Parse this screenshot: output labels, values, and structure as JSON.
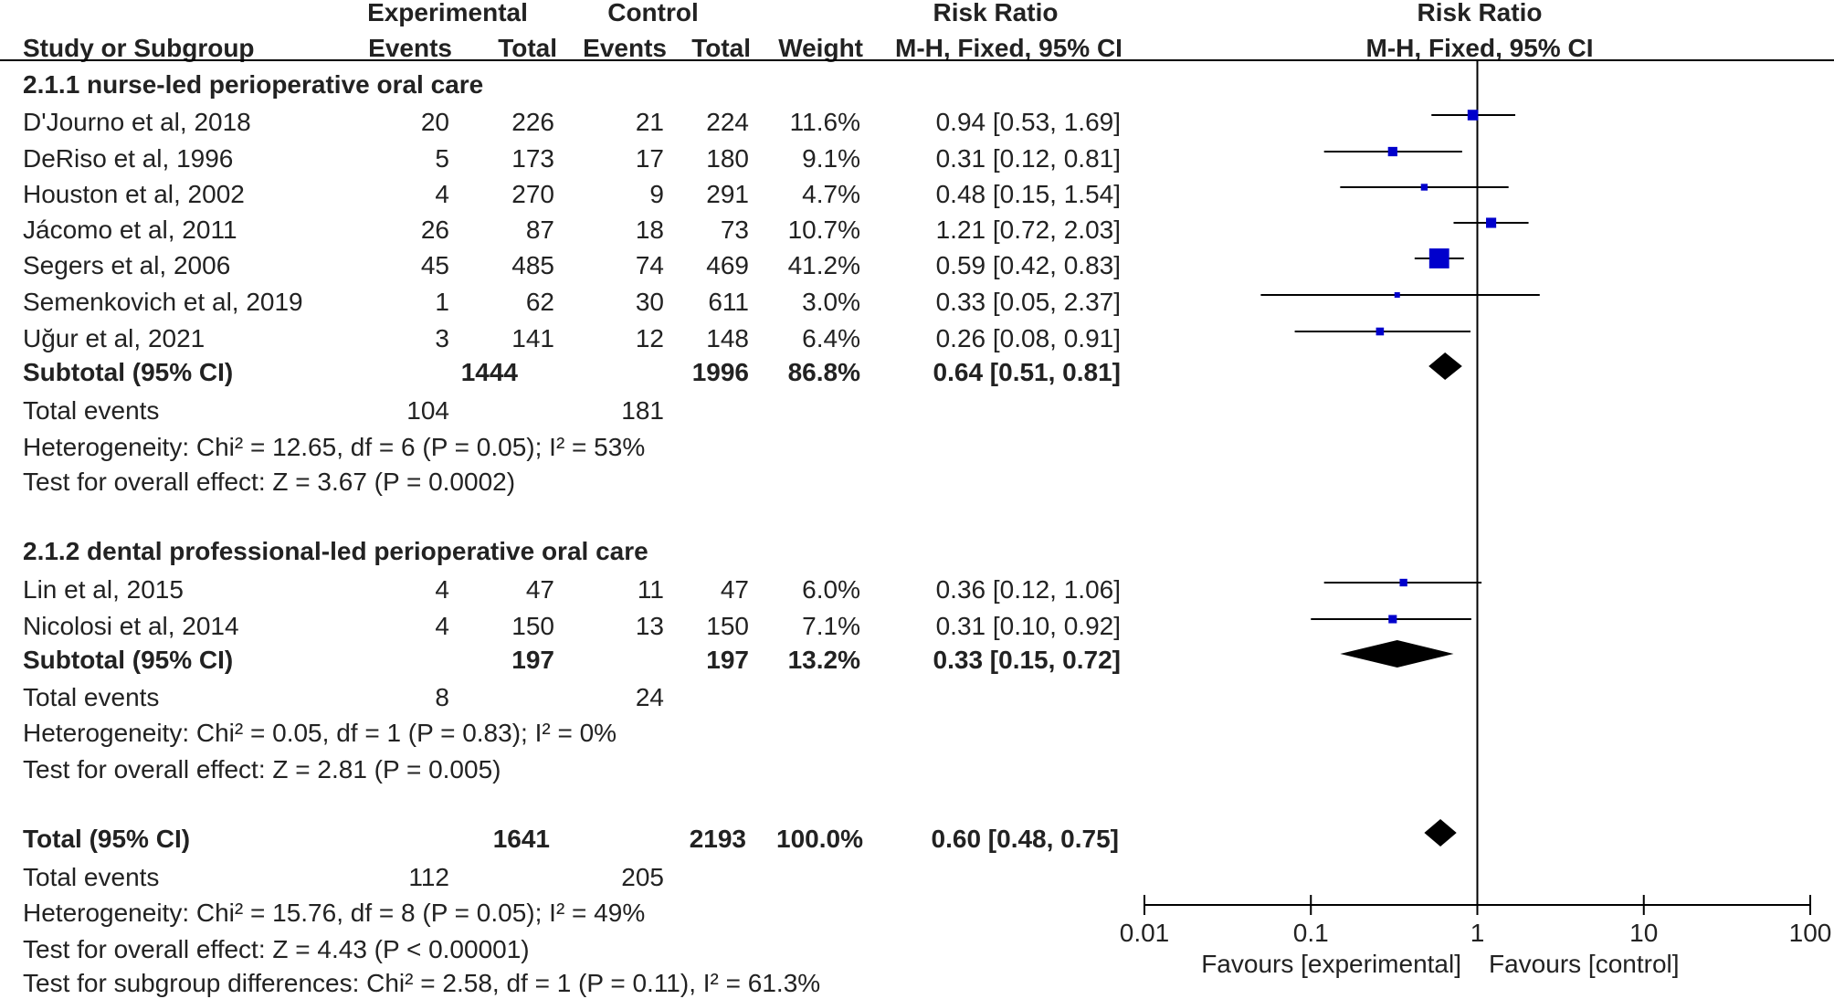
{
  "header": {
    "experimental": "Experimental",
    "control": "Control",
    "rr_left": "Risk Ratio",
    "rr_right": "Risk Ratio",
    "study": "Study or Subgroup",
    "exp_events": "Events",
    "exp_total": "Total",
    "ctl_events": "Events",
    "ctl_total": "Total",
    "weight": "Weight",
    "method_left": "M-H, Fixed, 95% CI",
    "method_right": "M-H, Fixed, 95% CI"
  },
  "chart_data": {
    "type": "forest",
    "x_scale": "log",
    "xlim": [
      0.01,
      100
    ],
    "ticks": [
      "0.01",
      "0.1",
      "1",
      "10",
      "100"
    ],
    "tick_values": [
      0.01,
      0.1,
      1,
      10,
      100
    ],
    "favours_left": "Favours [experimental]",
    "favours_right": "Favours [control]",
    "subgroups": [
      {
        "title": "2.1.1 nurse-led perioperative oral care",
        "studies": [
          {
            "name": "D'Journo et al, 2018",
            "exp_events": "20",
            "exp_total": "226",
            "ctl_events": "21",
            "ctl_total": "224",
            "weight": "11.6%",
            "ci_text": "0.94 [0.53, 1.69]",
            "rr": 0.94,
            "lo": 0.53,
            "hi": 1.69,
            "w": 11.6
          },
          {
            "name": "DeRiso et al, 1996",
            "exp_events": "5",
            "exp_total": "173",
            "ctl_events": "17",
            "ctl_total": "180",
            "weight": "9.1%",
            "ci_text": "0.31 [0.12, 0.81]",
            "rr": 0.31,
            "lo": 0.12,
            "hi": 0.81,
            "w": 9.1
          },
          {
            "name": "Houston et al, 2002",
            "exp_events": "4",
            "exp_total": "270",
            "ctl_events": "9",
            "ctl_total": "291",
            "weight": "4.7%",
            "ci_text": "0.48 [0.15, 1.54]",
            "rr": 0.48,
            "lo": 0.15,
            "hi": 1.54,
            "w": 4.7
          },
          {
            "name": "Jácomo et al, 2011",
            "exp_events": "26",
            "exp_total": "87",
            "ctl_events": "18",
            "ctl_total": "73",
            "weight": "10.7%",
            "ci_text": "1.21 [0.72, 2.03]",
            "rr": 1.21,
            "lo": 0.72,
            "hi": 2.03,
            "w": 10.7
          },
          {
            "name": "Segers et al, 2006",
            "exp_events": "45",
            "exp_total": "485",
            "ctl_events": "74",
            "ctl_total": "469",
            "weight": "41.2%",
            "ci_text": "0.59 [0.42, 0.83]",
            "rr": 0.59,
            "lo": 0.42,
            "hi": 0.83,
            "w": 41.2
          },
          {
            "name": "Semenkovich et al, 2019",
            "exp_events": "1",
            "exp_total": "62",
            "ctl_events": "30",
            "ctl_total": "611",
            "weight": "3.0%",
            "ci_text": "0.33 [0.05, 2.37]",
            "rr": 0.33,
            "lo": 0.05,
            "hi": 2.37,
            "w": 3.0
          },
          {
            "name": "Uğur et al, 2021",
            "exp_events": "3",
            "exp_total": "141",
            "ctl_events": "12",
            "ctl_total": "148",
            "weight": "6.4%",
            "ci_text": "0.26 [0.08, 0.91]",
            "rr": 0.26,
            "lo": 0.08,
            "hi": 0.91,
            "w": 6.4
          }
        ],
        "subtotal": {
          "label": "Subtotal (95% CI)",
          "exp_total": "1444",
          "ctl_total": "1996",
          "weight": "86.8%",
          "ci_text": "0.64 [0.51, 0.81]",
          "rr": 0.64,
          "lo": 0.51,
          "hi": 0.81
        },
        "total_events": {
          "label": "Total events",
          "exp": "104",
          "ctl": "181"
        },
        "heterogeneity": "Heterogeneity: Chi² = 12.65, df = 6 (P = 0.05); I² = 53%",
        "overall": "Test for overall effect: Z = 3.67 (P = 0.0002)"
      },
      {
        "title": "2.1.2 dental professional-led perioperative oral care",
        "studies": [
          {
            "name": "Lin et al, 2015",
            "exp_events": "4",
            "exp_total": "47",
            "ctl_events": "11",
            "ctl_total": "47",
            "weight": "6.0%",
            "ci_text": "0.36 [0.12, 1.06]",
            "rr": 0.36,
            "lo": 0.12,
            "hi": 1.06,
            "w": 6.0
          },
          {
            "name": "Nicolosi et al, 2014",
            "exp_events": "4",
            "exp_total": "150",
            "ctl_events": "13",
            "ctl_total": "150",
            "weight": "7.1%",
            "ci_text": "0.31 [0.10, 0.92]",
            "rr": 0.31,
            "lo": 0.1,
            "hi": 0.92,
            "w": 7.1
          }
        ],
        "subtotal": {
          "label": "Subtotal (95% CI)",
          "exp_total": "197",
          "ctl_total": "197",
          "weight": "13.2%",
          "ci_text": "0.33 [0.15, 0.72]",
          "rr": 0.33,
          "lo": 0.15,
          "hi": 0.72
        },
        "total_events": {
          "label": "Total events",
          "exp": "8",
          "ctl": "24"
        },
        "heterogeneity": "Heterogeneity: Chi² = 0.05, df = 1 (P = 0.83); I² = 0%",
        "overall": "Test for overall effect: Z = 2.81 (P = 0.005)"
      }
    ],
    "total": {
      "label": "Total (95% CI)",
      "exp_total": "1641",
      "ctl_total": "2193",
      "weight": "100.0%",
      "ci_text": "0.60 [0.48, 0.75]",
      "rr": 0.6,
      "lo": 0.48,
      "hi": 0.75
    },
    "total_events": {
      "label": "Total events",
      "exp": "112",
      "ctl": "205"
    },
    "heterogeneity": "Heterogeneity: Chi² = 15.76, df = 8 (P = 0.05); I² = 49%",
    "overall": "Test for overall effect: Z = 4.43 (P < 0.00001)",
    "subgroup_diff": "Test for subgroup differences: Chi² = 2.58, df = 1 (P = 0.11), I² = 61.3%",
    "colors": {
      "square": "#0000cc",
      "diamond": "#000000",
      "line": "#000000"
    }
  }
}
